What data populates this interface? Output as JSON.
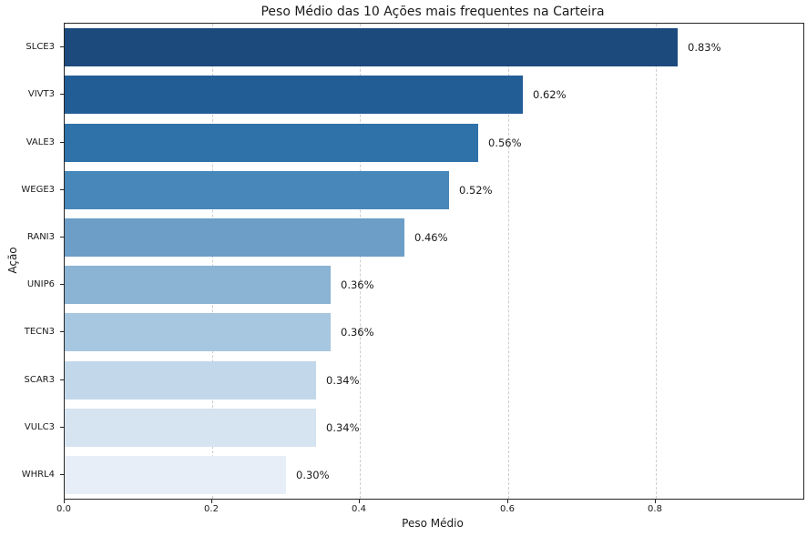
{
  "figure": {
    "background_color": "#ffffff",
    "text_color": "#1a1a1a",
    "spine_color": "#262626"
  },
  "chart_data": {
    "type": "bar",
    "orientation": "horizontal",
    "title": "Peso Médio das 10 Ações mais frequentes na Carteira",
    "xlabel": "Peso Médio",
    "ylabel": "Ação",
    "categories": [
      "SLCE3",
      "VIVT3",
      "VALE3",
      "WEGE3",
      "RANI3",
      "UNIP6",
      "TECN3",
      "SCAR3",
      "VULC3",
      "WHRL4"
    ],
    "values": [
      0.83,
      0.62,
      0.56,
      0.52,
      0.46,
      0.36,
      0.36,
      0.34,
      0.34,
      0.3
    ],
    "value_labels": [
      "0.83%",
      "0.62%",
      "0.56%",
      "0.52%",
      "0.46%",
      "0.36%",
      "0.36%",
      "0.34%",
      "0.34%",
      "0.30%"
    ],
    "bar_colors": [
      "#1d4a7d",
      "#235d96",
      "#2f71a9",
      "#4787b9",
      "#6c9ec7",
      "#8ab3d4",
      "#a7c6df",
      "#c2d7e9",
      "#d6e3f0",
      "#e7eef7"
    ],
    "x_ticks": [
      0.0,
      0.2,
      0.4,
      0.6,
      0.8
    ],
    "x_tick_labels": [
      "0.0",
      "0.2",
      "0.4",
      "0.6",
      "0.8"
    ],
    "xlim": [
      0,
      1.0
    ],
    "grid": "vertical-dashed",
    "grid_color": "#cccccc",
    "legend": null
  }
}
